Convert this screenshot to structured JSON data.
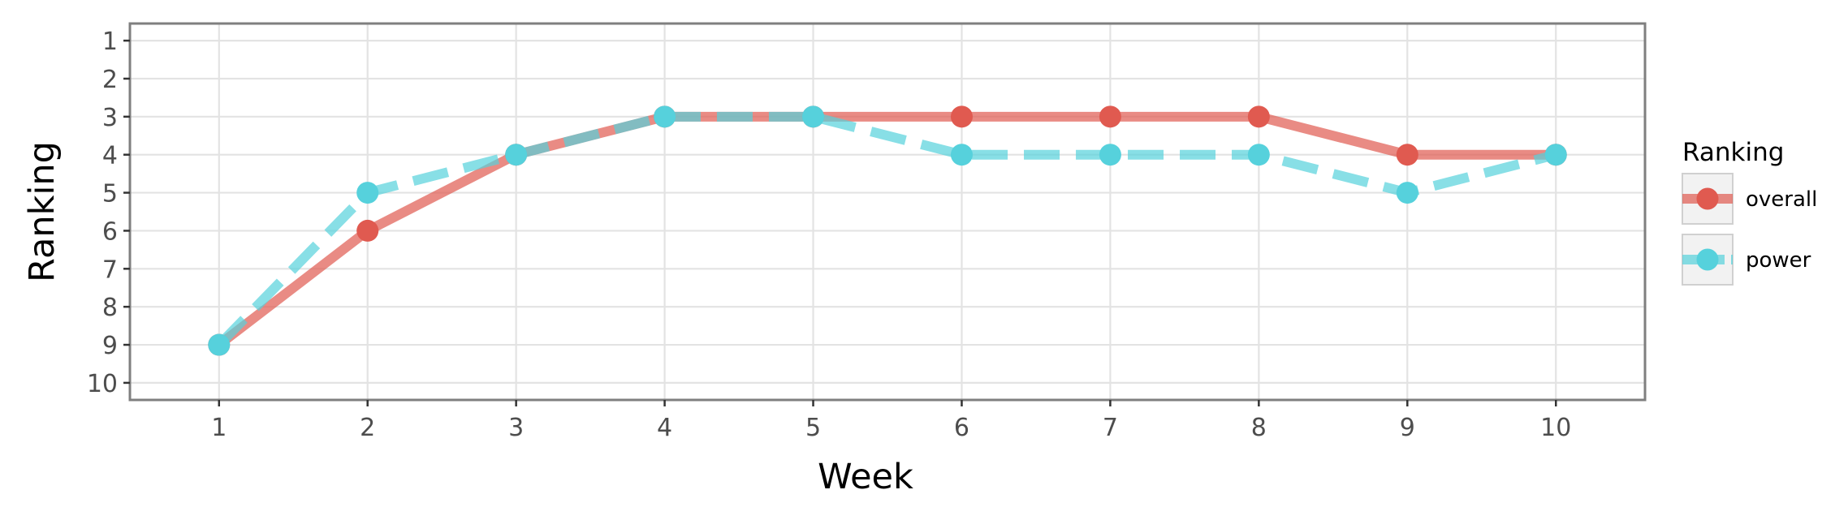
{
  "chart_data": {
    "type": "line",
    "x": [
      1,
      2,
      3,
      4,
      5,
      6,
      7,
      8,
      9,
      10
    ],
    "x_ticks": [
      "1",
      "2",
      "3",
      "4",
      "5",
      "6",
      "7",
      "8",
      "9",
      "10"
    ],
    "y_ticks": [
      "1",
      "2",
      "3",
      "4",
      "5",
      "6",
      "7",
      "8",
      "9",
      "10"
    ],
    "xlabel": "Week",
    "ylabel": "Ranking",
    "xlim": [
      0.4,
      10.6
    ],
    "ylim": [
      10.45,
      0.55
    ],
    "y_reversed": true,
    "grid": true,
    "legend": {
      "title": "Ranking",
      "position": "right"
    },
    "series": [
      {
        "name": "overall",
        "color": "#e05a50",
        "line_style": "solid",
        "values": [
          9,
          6,
          4,
          3,
          3,
          3,
          3,
          3,
          4,
          4
        ]
      },
      {
        "name": "power",
        "color": "#56d1dc",
        "line_style": "dashed",
        "values": [
          9,
          5,
          4,
          3,
          3,
          4,
          4,
          4,
          5,
          4
        ]
      }
    ]
  }
}
